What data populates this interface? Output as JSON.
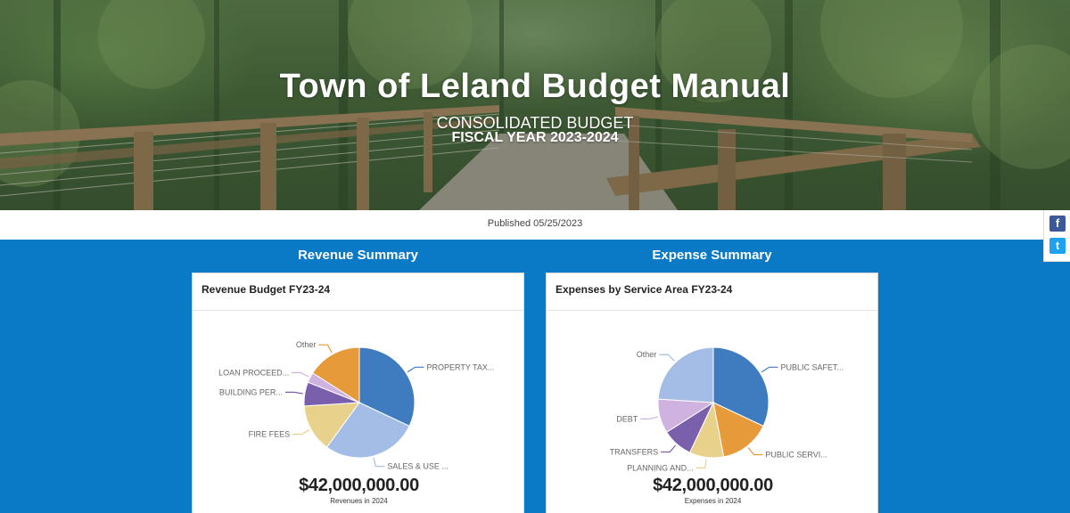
{
  "hero": {
    "title": "Town of Leland Budget Manual",
    "subtitle": "CONSOLIDATED BUDGET",
    "fiscal_year": "FISCAL YEAR 2023-2024"
  },
  "published": "Published 05/25/2023",
  "social": {
    "facebook_icon": "f",
    "twitter_icon": "t"
  },
  "revenue": {
    "section_title": "Revenue Summary",
    "card_title": "Revenue Budget FY23-24",
    "total": "$42,000,000.00",
    "total_caption": "Revenues in 2024"
  },
  "expense": {
    "section_title": "Expense Summary",
    "card_title": "Expenses by Service Area FY23-24",
    "total": "$42,000,000.00",
    "total_caption": "Expenses in 2024"
  },
  "chart_data": [
    {
      "type": "pie",
      "title": "Revenue Budget FY23-24",
      "slices": [
        {
          "label": "PROPERTY TAX...",
          "value": 32,
          "color": "#3f7bbf"
        },
        {
          "label": "SALES & USE ...",
          "value": 28,
          "color": "#a3bde6"
        },
        {
          "label": "FIRE FEES",
          "value": 14,
          "color": "#e8d18a"
        },
        {
          "label": "BUILDING PER...",
          "value": 7,
          "color": "#7a5fad"
        },
        {
          "label": "LOAN PROCEED...",
          "value": 3,
          "color": "#cfb2df"
        },
        {
          "label": "Other",
          "value": 16,
          "color": "#e79a3a"
        }
      ]
    },
    {
      "type": "pie",
      "title": "Expenses by Service Area FY23-24",
      "slices": [
        {
          "label": "PUBLIC SAFET...",
          "value": 32,
          "color": "#3f7bbf"
        },
        {
          "label": "PUBLIC SERVI...",
          "value": 15,
          "color": "#e79a3a"
        },
        {
          "label": "PLANNING AND...",
          "value": 10,
          "color": "#e8d18a"
        },
        {
          "label": "TRANSFERS",
          "value": 9,
          "color": "#7a5fad"
        },
        {
          "label": "DEBT",
          "value": 10,
          "color": "#cfb2df"
        },
        {
          "label": "Other",
          "value": 24,
          "color": "#a3bde6"
        }
      ]
    }
  ]
}
